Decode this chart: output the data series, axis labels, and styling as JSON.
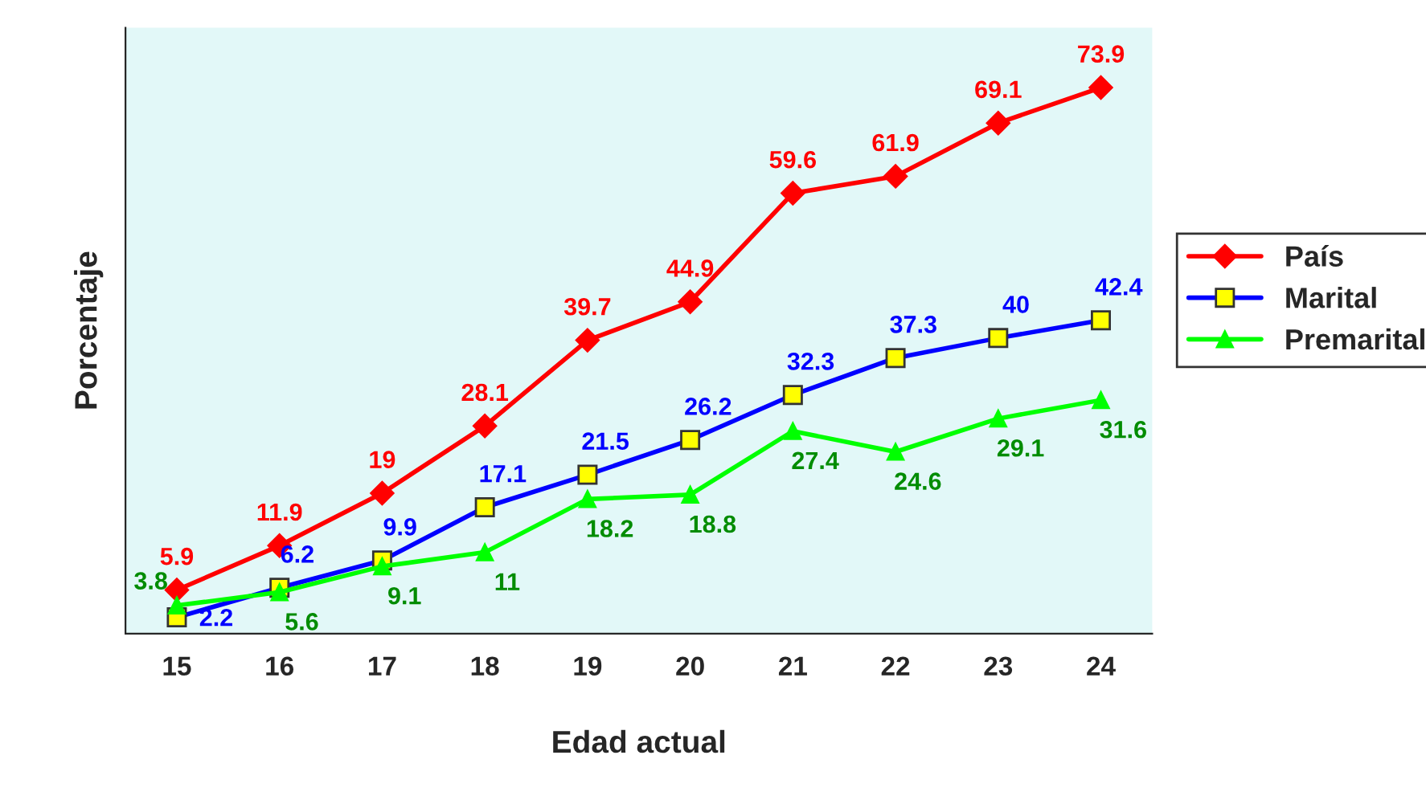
{
  "chart_data": {
    "type": "line",
    "xlabel": "Edad actual",
    "ylabel": "Porcentaje",
    "categories": [
      "15",
      "16",
      "17",
      "18",
      "19",
      "20",
      "21",
      "22",
      "23",
      "24"
    ],
    "series": [
      {
        "name": "País",
        "color": "#ff0000",
        "marker": "diamond",
        "values": [
          5.9,
          11.9,
          19,
          28.1,
          39.7,
          44.9,
          59.6,
          61.9,
          69.1,
          73.9
        ]
      },
      {
        "name": "Marital",
        "color": "#0000ff",
        "marker": "square",
        "values": [
          2.2,
          6.2,
          9.9,
          17.1,
          21.5,
          26.2,
          32.3,
          37.3,
          40,
          42.4
        ]
      },
      {
        "name": "Premarital",
        "color": "#00ff00",
        "marker": "triangle",
        "values": [
          3.8,
          5.6,
          9.1,
          11,
          18.2,
          18.8,
          27.4,
          24.6,
          29.1,
          31.6
        ]
      }
    ],
    "ylim": [
      0,
      82
    ],
    "data_labels": true,
    "legend": "right",
    "grid": false,
    "tick_labels": "x"
  }
}
